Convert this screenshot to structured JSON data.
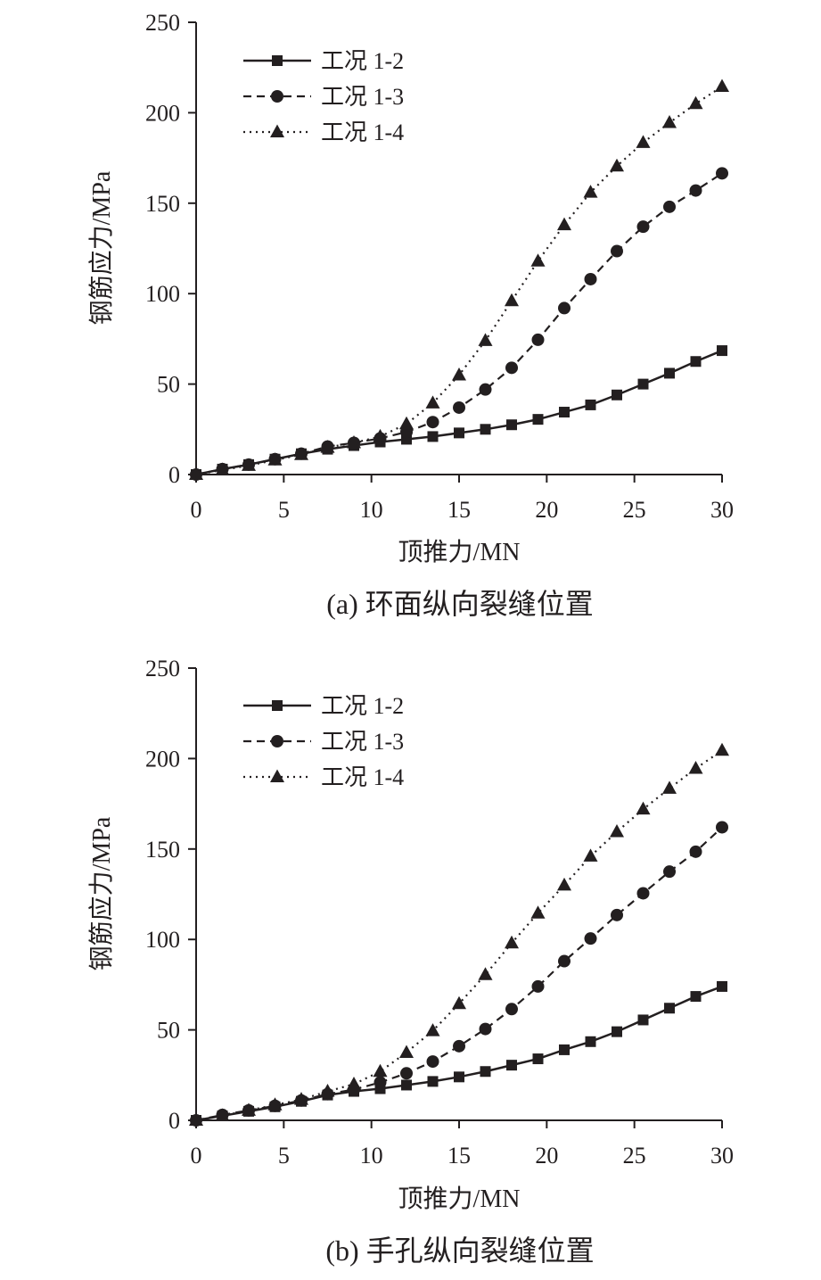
{
  "chart_data": [
    {
      "type": "line",
      "caption": "(a) 环面纵向裂缝位置",
      "xlabel": "顶推力/MN",
      "ylabel": "钢筋应力/MPa",
      "xlim": [
        0,
        30
      ],
      "ylim": [
        0,
        250
      ],
      "xticks": [
        "0",
        "5",
        "10",
        "15",
        "20",
        "25",
        "30"
      ],
      "yticks": [
        "0",
        "50",
        "100",
        "150",
        "200",
        "250"
      ],
      "x": [
        0,
        1.5,
        3,
        4.5,
        6,
        7.5,
        9,
        10.5,
        12,
        13.5,
        15,
        16.5,
        18,
        19.5,
        21,
        22.5,
        24,
        25.5,
        27,
        28.5,
        30
      ],
      "legend_position": "top-left",
      "grid": false,
      "series": [
        {
          "name": "工况 1-2",
          "marker": "square",
          "line": "solid",
          "values": [
            0,
            3,
            5.5,
            8.5,
            11.5,
            14,
            16,
            18,
            19.5,
            21,
            23,
            25,
            27.5,
            30.5,
            34.5,
            38.5,
            44,
            50,
            56,
            62.5,
            68.5
          ]
        },
        {
          "name": "工况 1-3",
          "marker": "circle",
          "line": "dashed",
          "values": [
            0,
            3,
            5.5,
            8.5,
            11.5,
            15.5,
            17.5,
            20,
            23.5,
            29,
            37,
            47,
            59,
            74.5,
            92,
            108,
            123.5,
            137,
            148,
            157,
            166.5
          ]
        },
        {
          "name": "工况 1-4",
          "marker": "triangle",
          "line": "dotted",
          "values": [
            0,
            2.5,
            5,
            8,
            11,
            15,
            17.5,
            21,
            28,
            39.5,
            55,
            74,
            96,
            118,
            138,
            156,
            170.5,
            183.5,
            194.5,
            205,
            214.5
          ]
        }
      ]
    },
    {
      "type": "line",
      "caption": "(b) 手孔纵向裂缝位置",
      "xlabel": "顶推力/MN",
      "ylabel": "钢筋应力/MPa",
      "xlim": [
        0,
        30
      ],
      "ylim": [
        0,
        250
      ],
      "xticks": [
        "0",
        "5",
        "10",
        "15",
        "20",
        "25",
        "30"
      ],
      "yticks": [
        "0",
        "50",
        "100",
        "150",
        "200",
        "250"
      ],
      "x": [
        0,
        1.5,
        3,
        4.5,
        6,
        7.5,
        9,
        10.5,
        12,
        13.5,
        15,
        16.5,
        18,
        19.5,
        21,
        22.5,
        24,
        25.5,
        27,
        28.5,
        30
      ],
      "legend_position": "top-left",
      "grid": false,
      "series": [
        {
          "name": "工况 1-2",
          "marker": "square",
          "line": "solid",
          "values": [
            0,
            2.5,
            5,
            7.5,
            10.5,
            14,
            16,
            17.5,
            19.5,
            21.5,
            24,
            27,
            30.5,
            34,
            39,
            43.5,
            49,
            55.5,
            62,
            68.5,
            74
          ]
        },
        {
          "name": "工况 1-3",
          "marker": "circle",
          "line": "dashed",
          "values": [
            0,
            3,
            5.5,
            8,
            11,
            14.5,
            17,
            21,
            26,
            32.5,
            41,
            50.5,
            61.5,
            74,
            88,
            100.5,
            113.5,
            125.5,
            137.5,
            148.5,
            162
          ]
        },
        {
          "name": "工况 1-4",
          "marker": "triangle",
          "line": "dotted",
          "values": [
            0,
            2.5,
            5.5,
            8.5,
            11.5,
            16,
            20,
            27,
            37.5,
            49.5,
            64.5,
            80.5,
            98,
            114.5,
            130,
            146,
            159.5,
            172,
            183.5,
            194.5,
            204.5
          ]
        }
      ]
    }
  ]
}
